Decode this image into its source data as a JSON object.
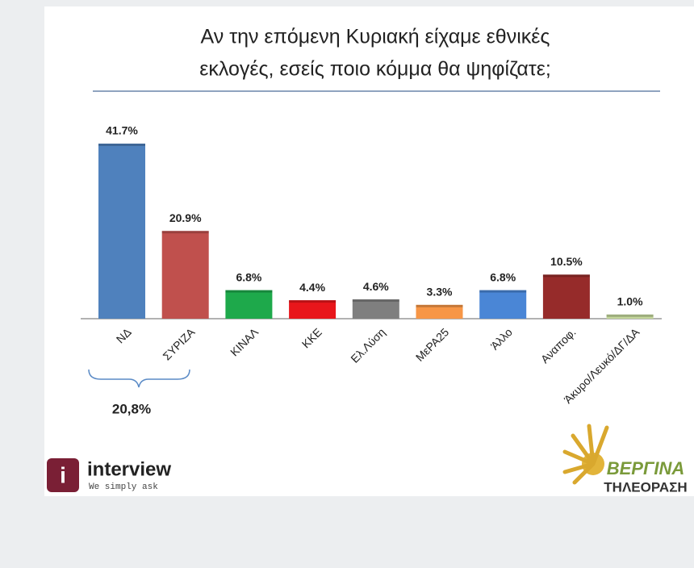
{
  "chart_data": {
    "type": "bar",
    "title": [
      "Αν την επόμενη Κυριακή είχαμε εθνικές",
      "εκλογές, εσείς ποιο κόμμα θα ψηφίζατε;"
    ],
    "categories": [
      "ΝΔ",
      "ΣΥΡΙΖΑ",
      "ΚΙΝΑΛ",
      "ΚΚΕ",
      "Ελ.Λύση",
      "ΜεΡΑ25",
      "Άλλο",
      "Αναποφ.",
      "Άκυρο/Λευκό/ΔΓ/ΔΑ"
    ],
    "values": [
      41.7,
      20.9,
      6.8,
      4.4,
      4.6,
      3.3,
      6.8,
      10.5,
      1.0
    ],
    "value_labels": [
      "41.7%",
      "20.9%",
      "6.8%",
      "4.4%",
      "4.6%",
      "3.3%",
      "6.8%",
      "10.5%",
      "1.0%"
    ],
    "colors": [
      "#4f81bd",
      "#c0504d",
      "#1ea94b",
      "#e8161b",
      "#7f7f7f",
      "#f79646",
      "#4a86d6",
      "#962b2a",
      "#c4d79b"
    ],
    "annotation": "20,8%"
  },
  "logos": {
    "left": {
      "name": "interview",
      "tagline": "We simply ask"
    },
    "right": {
      "name": "ΒΕΡΓΙΝΑ",
      "tagline": "ΤΗΛΕΟΡΑΣΗ"
    }
  }
}
